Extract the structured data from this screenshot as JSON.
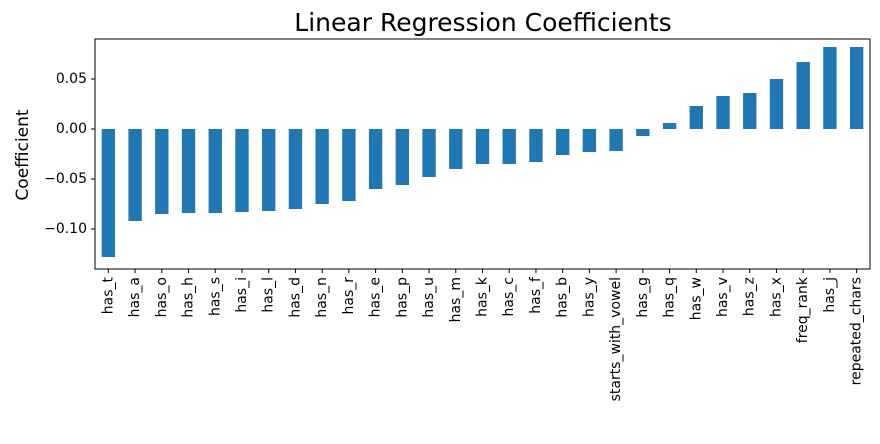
{
  "chart_data": {
    "type": "bar",
    "title": "Linear Regression Coefficients",
    "xlabel": "",
    "ylabel": "Coefficient",
    "ylim": [
      -0.14,
      0.09
    ],
    "yticks": [
      -0.1,
      -0.05,
      0.0,
      0.05
    ],
    "ytick_labels": [
      "−0.10",
      "−0.05",
      "0.00",
      "0.05"
    ],
    "grid": false,
    "legend": "none",
    "bar_color": "#1f77b4",
    "categories": [
      "has_t",
      "has_a",
      "has_o",
      "has_h",
      "has_s",
      "has_i",
      "has_l",
      "has_d",
      "has_n",
      "has_r",
      "has_e",
      "has_p",
      "has_u",
      "has_m",
      "has_k",
      "has_c",
      "has_f",
      "has_b",
      "has_y",
      "starts_with_vowel",
      "has_g",
      "has_q",
      "has_w",
      "has_v",
      "has_z",
      "has_x",
      "freq_rank",
      "has_j",
      "repeated_chars"
    ],
    "values": [
      -0.128,
      -0.092,
      -0.085,
      -0.084,
      -0.084,
      -0.083,
      -0.082,
      -0.08,
      -0.075,
      -0.072,
      -0.06,
      -0.056,
      -0.048,
      -0.04,
      -0.035,
      -0.035,
      -0.033,
      -0.026,
      -0.023,
      -0.022,
      -0.007,
      0.006,
      0.023,
      0.033,
      0.036,
      0.05,
      0.067,
      0.082,
      0.082
    ]
  }
}
